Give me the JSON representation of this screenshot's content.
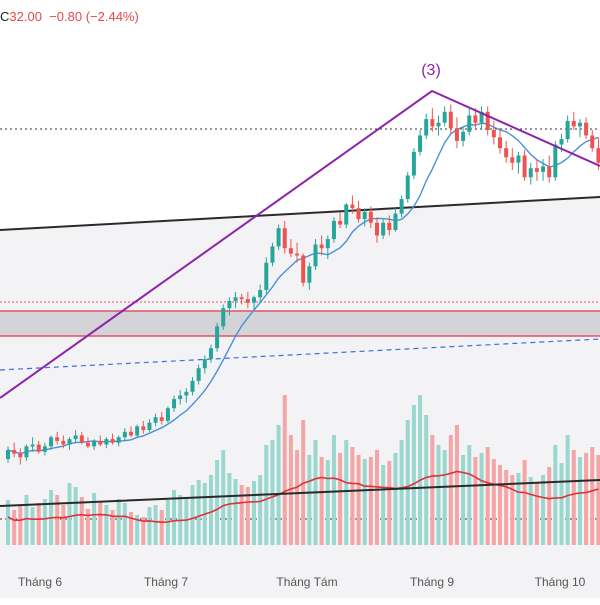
{
  "header": {
    "ohlc_prefix": "C",
    "close": "32.00",
    "change": "−0.80",
    "change_pct": "(−2.44%)",
    "color": "#e5484d"
  },
  "wave_label": "(3)",
  "chart_data": {
    "type": "candlestick",
    "x_tick_labels": [
      "Tháng 6",
      "Tháng 7",
      "Tháng Tám",
      "Tháng 9",
      "Tháng 10"
    ],
    "grid": false,
    "colors": {
      "up": "#26a69a",
      "down": "#ef5350",
      "vol_up": "#9ad8cf",
      "vol_down": "#f4a6a6",
      "ma": "#4a90d9",
      "vol_ma": "#e0303a",
      "wave": "#8e24aa",
      "channel": "#2a2a2a",
      "zone_line": "#e05564",
      "dashed": "#3d6fe0",
      "dotted": "#333333"
    },
    "candles": [
      [
        15.7,
        16.4,
        15.5,
        16.2
      ],
      [
        16.2,
        16.6,
        15.8,
        16.0
      ],
      [
        16.0,
        16.3,
        15.4,
        15.8
      ],
      [
        15.8,
        16.5,
        15.6,
        16.4
      ],
      [
        16.4,
        16.9,
        16.1,
        16.5
      ],
      [
        16.5,
        16.7,
        16.0,
        16.1
      ],
      [
        16.1,
        16.6,
        15.9,
        16.4
      ],
      [
        16.4,
        17.0,
        16.2,
        16.9
      ],
      [
        16.9,
        17.2,
        16.5,
        16.7
      ],
      [
        16.7,
        17.0,
        16.3,
        16.5
      ],
      [
        16.5,
        16.9,
        16.2,
        16.8
      ],
      [
        16.8,
        17.3,
        16.6,
        17.0
      ],
      [
        17.0,
        17.2,
        16.5,
        16.6
      ],
      [
        16.6,
        16.9,
        16.3,
        16.4
      ],
      [
        16.4,
        16.8,
        16.2,
        16.7
      ],
      [
        16.7,
        17.0,
        16.4,
        16.5
      ],
      [
        16.5,
        16.9,
        16.3,
        16.8
      ],
      [
        16.8,
        17.1,
        16.5,
        16.6
      ],
      [
        16.6,
        17.0,
        16.4,
        16.9
      ],
      [
        16.9,
        17.4,
        16.7,
        17.2
      ],
      [
        17.2,
        17.5,
        16.9,
        17.0
      ],
      [
        17.0,
        17.6,
        16.9,
        17.5
      ],
      [
        17.5,
        17.8,
        17.1,
        17.3
      ],
      [
        17.3,
        17.9,
        17.2,
        17.7
      ],
      [
        17.7,
        18.2,
        17.5,
        18.0
      ],
      [
        18.0,
        18.3,
        17.6,
        17.8
      ],
      [
        17.8,
        18.6,
        17.7,
        18.5
      ],
      [
        18.5,
        19.2,
        18.3,
        19.0
      ],
      [
        19.0,
        19.5,
        18.7,
        19.2
      ],
      [
        19.2,
        19.6,
        18.8,
        19.4
      ],
      [
        19.4,
        20.2,
        19.2,
        20.0
      ],
      [
        20.0,
        20.9,
        19.8,
        20.7
      ],
      [
        20.7,
        21.4,
        20.4,
        21.2
      ],
      [
        21.2,
        22.0,
        21.0,
        21.8
      ],
      [
        21.8,
        23.2,
        21.6,
        23.0
      ],
      [
        23.0,
        24.2,
        22.8,
        24.0
      ],
      [
        24.0,
        24.6,
        23.6,
        24.4
      ],
      [
        24.4,
        24.9,
        24.0,
        24.6
      ],
      [
        24.6,
        24.8,
        24.2,
        24.5
      ],
      [
        24.5,
        24.9,
        24.0,
        24.3
      ],
      [
        24.3,
        24.7,
        23.9,
        24.6
      ],
      [
        24.6,
        25.3,
        24.3,
        25.0
      ],
      [
        25.0,
        26.8,
        24.8,
        26.5
      ],
      [
        26.5,
        27.6,
        26.3,
        27.4
      ],
      [
        27.4,
        28.6,
        27.2,
        28.4
      ],
      [
        28.4,
        28.8,
        27.0,
        27.3
      ],
      [
        27.3,
        27.8,
        26.8,
        27.0
      ],
      [
        27.0,
        27.6,
        26.5,
        26.9
      ],
      [
        26.9,
        27.0,
        25.2,
        25.4
      ],
      [
        25.4,
        26.5,
        25.0,
        26.3
      ],
      [
        26.3,
        27.8,
        26.1,
        27.5
      ],
      [
        27.5,
        28.0,
        26.9,
        27.3
      ],
      [
        27.3,
        28.0,
        26.7,
        27.8
      ],
      [
        27.8,
        29.0,
        27.6,
        28.8
      ],
      [
        28.8,
        29.3,
        28.4,
        28.6
      ],
      [
        28.6,
        29.8,
        28.4,
        29.7
      ],
      [
        29.7,
        30.2,
        29.2,
        29.5
      ],
      [
        29.5,
        29.9,
        28.7,
        28.9
      ],
      [
        28.9,
        29.5,
        28.5,
        29.3
      ],
      [
        29.3,
        29.6,
        28.4,
        28.7
      ],
      [
        28.7,
        29.0,
        27.6,
        28.0
      ],
      [
        28.0,
        28.9,
        27.8,
        28.7
      ],
      [
        28.7,
        29.1,
        28.0,
        28.3
      ],
      [
        28.3,
        29.5,
        28.2,
        29.2
      ],
      [
        29.2,
        30.2,
        29.0,
        30.0
      ],
      [
        30.0,
        31.5,
        29.8,
        31.3
      ],
      [
        31.3,
        32.8,
        31.1,
        32.6
      ],
      [
        32.6,
        33.8,
        32.4,
        33.5
      ],
      [
        33.5,
        34.7,
        33.3,
        34.4
      ],
      [
        34.4,
        35.0,
        33.7,
        34.0
      ],
      [
        34.0,
        34.6,
        33.5,
        34.2
      ],
      [
        34.2,
        35.1,
        34.0,
        34.8
      ],
      [
        34.8,
        35.2,
        33.6,
        33.9
      ],
      [
        33.9,
        34.5,
        32.8,
        33.2
      ],
      [
        33.2,
        34.0,
        32.9,
        33.7
      ],
      [
        33.7,
        35.0,
        33.5,
        34.6
      ],
      [
        34.6,
        35.0,
        33.8,
        34.2
      ],
      [
        34.2,
        35.1,
        33.8,
        34.8
      ],
      [
        34.8,
        35.1,
        33.5,
        33.8
      ],
      [
        33.8,
        34.3,
        33.0,
        33.4
      ],
      [
        33.4,
        33.9,
        32.5,
        32.8
      ],
      [
        32.8,
        33.2,
        32.0,
        32.3
      ],
      [
        32.3,
        32.8,
        31.6,
        32.0
      ],
      [
        32.0,
        32.6,
        31.4,
        32.4
      ],
      [
        32.4,
        32.7,
        31.0,
        31.2
      ],
      [
        31.2,
        32.0,
        30.8,
        31.7
      ],
      [
        31.7,
        32.2,
        31.0,
        31.5
      ],
      [
        31.5,
        32.2,
        31.0,
        31.8
      ],
      [
        31.8,
        32.4,
        30.9,
        31.2
      ],
      [
        31.2,
        33.2,
        31.0,
        33.0
      ],
      [
        33.0,
        33.6,
        32.6,
        33.3
      ],
      [
        33.3,
        34.6,
        33.1,
        34.3
      ],
      [
        34.3,
        34.8,
        33.8,
        34.0
      ],
      [
        34.0,
        34.4,
        33.4,
        34.2
      ],
      [
        34.2,
        34.5,
        33.3,
        33.5
      ],
      [
        33.5,
        33.8,
        32.6,
        32.8
      ],
      [
        32.8,
        33.4,
        31.6,
        32.0
      ]
    ],
    "volumes": [
      [
        0.45,
        1
      ],
      [
        0.35,
        0
      ],
      [
        0.4,
        0
      ],
      [
        0.5,
        1
      ],
      [
        0.38,
        1
      ],
      [
        0.42,
        0
      ],
      [
        0.46,
        1
      ],
      [
        0.55,
        1
      ],
      [
        0.5,
        0
      ],
      [
        0.4,
        0
      ],
      [
        0.62,
        1
      ],
      [
        0.58,
        1
      ],
      [
        0.48,
        0
      ],
      [
        0.36,
        0
      ],
      [
        0.52,
        1
      ],
      [
        0.44,
        0
      ],
      [
        0.4,
        1
      ],
      [
        0.35,
        0
      ],
      [
        0.46,
        1
      ],
      [
        0.42,
        1
      ],
      [
        0.33,
        0
      ],
      [
        0.3,
        1
      ],
      [
        0.28,
        0
      ],
      [
        0.38,
        1
      ],
      [
        0.4,
        1
      ],
      [
        0.35,
        0
      ],
      [
        0.45,
        1
      ],
      [
        0.55,
        1
      ],
      [
        0.5,
        1
      ],
      [
        0.48,
        1
      ],
      [
        0.6,
        1
      ],
      [
        0.65,
        1
      ],
      [
        0.62,
        1
      ],
      [
        0.7,
        1
      ],
      [
        0.85,
        1
      ],
      [
        0.95,
        1
      ],
      [
        0.72,
        1
      ],
      [
        0.66,
        1
      ],
      [
        0.6,
        0
      ],
      [
        0.58,
        0
      ],
      [
        0.64,
        1
      ],
      [
        0.7,
        1
      ],
      [
        1.0,
        1
      ],
      [
        1.05,
        1
      ],
      [
        1.2,
        1
      ],
      [
        1.5,
        0
      ],
      [
        1.1,
        0
      ],
      [
        0.95,
        0
      ],
      [
        1.25,
        0
      ],
      [
        0.9,
        1
      ],
      [
        1.05,
        1
      ],
      [
        0.88,
        0
      ],
      [
        0.85,
        1
      ],
      [
        1.1,
        1
      ],
      [
        0.92,
        0
      ],
      [
        1.05,
        1
      ],
      [
        0.98,
        0
      ],
      [
        0.9,
        0
      ],
      [
        0.86,
        1
      ],
      [
        0.88,
        0
      ],
      [
        0.95,
        0
      ],
      [
        0.8,
        1
      ],
      [
        0.84,
        0
      ],
      [
        0.92,
        1
      ],
      [
        1.05,
        1
      ],
      [
        1.25,
        1
      ],
      [
        1.4,
        1
      ],
      [
        1.5,
        1
      ],
      [
        1.3,
        1
      ],
      [
        1.1,
        0
      ],
      [
        1.0,
        1
      ],
      [
        0.95,
        1
      ],
      [
        1.1,
        0
      ],
      [
        1.2,
        0
      ],
      [
        0.9,
        1
      ],
      [
        1.0,
        1
      ],
      [
        0.88,
        0
      ],
      [
        0.92,
        1
      ],
      [
        0.98,
        0
      ],
      [
        0.86,
        0
      ],
      [
        0.8,
        0
      ],
      [
        0.75,
        0
      ],
      [
        0.7,
        0
      ],
      [
        0.72,
        1
      ],
      [
        0.85,
        0
      ],
      [
        0.68,
        1
      ],
      [
        0.62,
        0
      ],
      [
        0.7,
        1
      ],
      [
        0.78,
        0
      ],
      [
        1.0,
        1
      ],
      [
        0.82,
        1
      ],
      [
        1.1,
        1
      ],
      [
        0.95,
        0
      ],
      [
        0.88,
        1
      ],
      [
        0.92,
        0
      ],
      [
        0.98,
        0
      ],
      [
        0.9,
        0
      ]
    ]
  }
}
